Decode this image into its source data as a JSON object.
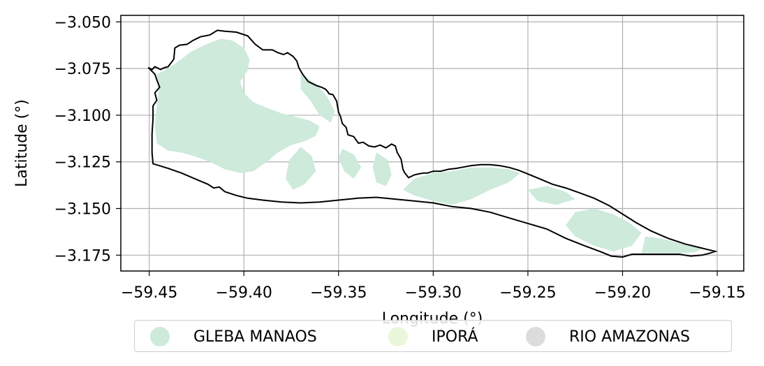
{
  "chart_data": {
    "type": "map",
    "xlabel": "Longitude (°)",
    "ylabel": "Latitude (°)",
    "xlim": [
      -59.465,
      -59.136
    ],
    "ylim": [
      -3.1835,
      -3.0465
    ],
    "xticks": [
      -59.45,
      -59.4,
      -59.35,
      -59.3,
      -59.25,
      -59.2,
      -59.15
    ],
    "yticks": [
      -3.05,
      -3.075,
      -3.1,
      -3.125,
      -3.15,
      -3.175
    ],
    "xtick_labels": [
      "−59.45",
      "−59.40",
      "−59.35",
      "−59.30",
      "−59.25",
      "−59.20",
      "−59.15"
    ],
    "ytick_labels": [
      "−3.050",
      "−3.075",
      "−3.100",
      "−3.125",
      "−3.150",
      "−3.175"
    ],
    "grid": true,
    "legend_position": "below",
    "boundary": [
      [
        -59.4505,
        -3.0745
      ],
      [
        -59.4485,
        -3.0755
      ],
      [
        -59.447,
        -3.074
      ],
      [
        -59.444,
        -3.0755
      ],
      [
        -59.442,
        -3.0745
      ],
      [
        -59.44,
        -3.074
      ],
      [
        -59.4385,
        -3.072
      ],
      [
        -59.437,
        -3.07
      ],
      [
        -59.4365,
        -3.064
      ],
      [
        -59.434,
        -3.0625
      ],
      [
        -59.43,
        -3.062
      ],
      [
        -59.427,
        -3.06
      ],
      [
        -59.423,
        -3.058
      ],
      [
        -59.418,
        -3.057
      ],
      [
        -59.414,
        -3.0545
      ],
      [
        -59.41,
        -3.055
      ],
      [
        -59.404,
        -3.0555
      ],
      [
        -59.398,
        -3.0575
      ],
      [
        -59.394,
        -3.062
      ],
      [
        -59.39,
        -3.065
      ],
      [
        -59.385,
        -3.065
      ],
      [
        -59.382,
        -3.0665
      ],
      [
        -59.379,
        -3.0675
      ],
      [
        -59.377,
        -3.0665
      ],
      [
        -59.374,
        -3.0685
      ],
      [
        -59.372,
        -3.071
      ],
      [
        -59.371,
        -3.0745
      ],
      [
        -59.369,
        -3.078
      ],
      [
        -59.366,
        -3.082
      ],
      [
        -59.362,
        -3.084
      ],
      [
        -59.359,
        -3.085
      ],
      [
        -59.357,
        -3.086
      ],
      [
        -59.356,
        -3.087
      ],
      [
        -59.355,
        -3.0885
      ],
      [
        -59.353,
        -3.089
      ],
      [
        -59.351,
        -3.0925
      ],
      [
        -59.35,
        -3.0985
      ],
      [
        -59.349,
        -3.1005
      ],
      [
        -59.348,
        -3.1045
      ],
      [
        -59.346,
        -3.1065
      ],
      [
        -59.345,
        -3.1105
      ],
      [
        -59.342,
        -3.1115
      ],
      [
        -59.3395,
        -3.115
      ],
      [
        -59.337,
        -3.1145
      ],
      [
        -59.334,
        -3.1165
      ],
      [
        -59.331,
        -3.117
      ],
      [
        -59.328,
        -3.116
      ],
      [
        -59.325,
        -3.1175
      ],
      [
        -59.322,
        -3.1155
      ],
      [
        -59.32,
        -3.1165
      ],
      [
        -59.319,
        -3.12
      ],
      [
        -59.317,
        -3.1235
      ],
      [
        -59.3165,
        -3.126
      ],
      [
        -59.316,
        -3.129
      ],
      [
        -59.315,
        -3.131
      ],
      [
        -59.313,
        -3.1335
      ],
      [
        -59.31,
        -3.132
      ],
      [
        -59.308,
        -3.1315
      ],
      [
        -59.305,
        -3.131
      ],
      [
        -59.303,
        -3.131
      ],
      [
        -59.3,
        -3.13
      ],
      [
        -59.296,
        -3.13
      ],
      [
        -59.292,
        -3.129
      ],
      [
        -59.288,
        -3.1285
      ],
      [
        -59.285,
        -3.128
      ],
      [
        -59.28,
        -3.127
      ],
      [
        -59.275,
        -3.1265
      ],
      [
        -59.27,
        -3.1265
      ],
      [
        -59.265,
        -3.127
      ],
      [
        -59.26,
        -3.128
      ],
      [
        -59.255,
        -3.1295
      ],
      [
        -59.25,
        -3.1315
      ],
      [
        -59.244,
        -3.134
      ],
      [
        -59.237,
        -3.137
      ],
      [
        -59.23,
        -3.139
      ],
      [
        -59.223,
        -3.1415
      ],
      [
        -59.215,
        -3.1445
      ],
      [
        -59.207,
        -3.1485
      ],
      [
        -59.2,
        -3.153
      ],
      [
        -59.193,
        -3.1575
      ],
      [
        -59.185,
        -3.162
      ],
      [
        -59.176,
        -3.166
      ],
      [
        -59.167,
        -3.169
      ],
      [
        -59.159,
        -3.171
      ],
      [
        -59.155,
        -3.172
      ],
      [
        -59.151,
        -3.173
      ],
      [
        -59.154,
        -3.174
      ],
      [
        -59.158,
        -3.175
      ],
      [
        -59.164,
        -3.1755
      ],
      [
        -59.17,
        -3.1745
      ],
      [
        -59.178,
        -3.1745
      ],
      [
        -59.186,
        -3.1745
      ],
      [
        -59.195,
        -3.1745
      ],
      [
        -59.2,
        -3.176
      ],
      [
        -59.206,
        -3.1755
      ],
      [
        -59.212,
        -3.173
      ],
      [
        -59.22,
        -3.17
      ],
      [
        -59.23,
        -3.166
      ],
      [
        -59.24,
        -3.161
      ],
      [
        -59.25,
        -3.158
      ],
      [
        -59.26,
        -3.155
      ],
      [
        -59.27,
        -3.152
      ],
      [
        -59.28,
        -3.15
      ],
      [
        -59.29,
        -3.149
      ],
      [
        -59.3,
        -3.147
      ],
      [
        -59.31,
        -3.146
      ],
      [
        -59.32,
        -3.145
      ],
      [
        -59.33,
        -3.144
      ],
      [
        -59.34,
        -3.1445
      ],
      [
        -59.35,
        -3.1455
      ],
      [
        -59.36,
        -3.1465
      ],
      [
        -59.37,
        -3.147
      ],
      [
        -59.38,
        -3.1465
      ],
      [
        -59.39,
        -3.1455
      ],
      [
        -59.398,
        -3.1445
      ],
      [
        -59.404,
        -3.143
      ],
      [
        -59.41,
        -3.141
      ],
      [
        -59.413,
        -3.1385
      ],
      [
        -59.416,
        -3.139
      ],
      [
        -59.419,
        -3.137
      ],
      [
        -59.426,
        -3.134
      ],
      [
        -59.433,
        -3.131
      ],
      [
        -59.44,
        -3.1285
      ],
      [
        -59.448,
        -3.126
      ],
      [
        -59.4485,
        -3.12
      ],
      [
        -59.4485,
        -3.11
      ],
      [
        -59.448,
        -3.102
      ],
      [
        -59.448,
        -3.095
      ],
      [
        -59.446,
        -3.092
      ],
      [
        -59.447,
        -3.088
      ],
      [
        -59.4445,
        -3.085
      ],
      [
        -59.446,
        -3.081
      ],
      [
        -59.447,
        -3.078
      ],
      [
        -59.4505,
        -3.0745
      ]
    ],
    "series": [
      {
        "name": "GLEBA MANAOS",
        "color": "#cdeadb",
        "regions": [
          [
            [
              -59.446,
              -3.078
            ],
            [
              -59.44,
              -3.075
            ],
            [
              -59.433,
              -3.07
            ],
            [
              -59.428,
              -3.066
            ],
            [
              -59.42,
              -3.062
            ],
            [
              -59.412,
              -3.059
            ],
            [
              -59.406,
              -3.06
            ],
            [
              -59.4,
              -3.064
            ],
            [
              -59.397,
              -3.07
            ],
            [
              -59.398,
              -3.076
            ],
            [
              -59.402,
              -3.082
            ],
            [
              -59.4,
              -3.088
            ],
            [
              -59.395,
              -3.093
            ],
            [
              -59.388,
              -3.096
            ],
            [
              -59.38,
              -3.099
            ],
            [
              -59.372,
              -3.101
            ],
            [
              -59.365,
              -3.103
            ],
            [
              -59.36,
              -3.106
            ],
            [
              -59.362,
              -3.111
            ],
            [
              -59.368,
              -3.114
            ],
            [
              -59.375,
              -3.116
            ],
            [
              -59.382,
              -3.12
            ],
            [
              -59.388,
              -3.125
            ],
            [
              -59.395,
              -3.13
            ],
            [
              -59.402,
              -3.131
            ],
            [
              -59.41,
              -3.129
            ],
            [
              -59.418,
              -3.125
            ],
            [
              -59.426,
              -3.122
            ],
            [
              -59.433,
              -3.12
            ],
            [
              -59.44,
              -3.119
            ],
            [
              -59.446,
              -3.115
            ],
            [
              -59.447,
              -3.105
            ],
            [
              -59.446,
              -3.095
            ],
            [
              -59.445,
              -3.087
            ]
          ],
          [
            [
              -59.37,
              -3.078
            ],
            [
              -59.362,
              -3.083
            ],
            [
              -59.356,
              -3.09
            ],
            [
              -59.352,
              -3.098
            ],
            [
              -59.354,
              -3.104
            ],
            [
              -59.36,
              -3.1
            ],
            [
              -59.365,
              -3.092
            ],
            [
              -59.37,
              -3.086
            ]
          ],
          [
            [
              -59.37,
              -3.117
            ],
            [
              -59.364,
              -3.122
            ],
            [
              -59.362,
              -3.13
            ],
            [
              -59.368,
              -3.137
            ],
            [
              -59.374,
              -3.14
            ],
            [
              -59.378,
              -3.134
            ],
            [
              -59.376,
              -3.124
            ]
          ],
          [
            [
              -59.348,
              -3.118
            ],
            [
              -59.342,
              -3.121
            ],
            [
              -59.338,
              -3.128
            ],
            [
              -59.342,
              -3.134
            ],
            [
              -59.347,
              -3.13
            ],
            [
              -59.35,
              -3.123
            ]
          ],
          [
            [
              -59.33,
              -3.12
            ],
            [
              -59.324,
              -3.124
            ],
            [
              -59.322,
              -3.132
            ],
            [
              -59.325,
              -3.138
            ],
            [
              -59.33,
              -3.136
            ],
            [
              -59.332,
              -3.128
            ]
          ],
          [
            [
              -59.31,
              -3.134
            ],
            [
              -59.3,
              -3.131
            ],
            [
              -59.29,
              -3.13
            ],
            [
              -59.28,
              -3.128
            ],
            [
              -59.27,
              -3.128
            ],
            [
              -59.26,
              -3.129
            ],
            [
              -59.254,
              -3.131
            ],
            [
              -59.26,
              -3.136
            ],
            [
              -59.27,
              -3.14
            ],
            [
              -59.28,
              -3.145
            ],
            [
              -59.29,
              -3.148
            ],
            [
              -59.3,
              -3.146
            ],
            [
              -59.31,
              -3.143
            ],
            [
              -59.316,
              -3.14
            ]
          ],
          [
            [
              -59.25,
              -3.14
            ],
            [
              -59.24,
              -3.138
            ],
            [
              -59.23,
              -3.141
            ],
            [
              -59.225,
              -3.145
            ],
            [
              -59.235,
              -3.148
            ],
            [
              -59.245,
              -3.146
            ]
          ],
          [
            [
              -59.225,
              -3.152
            ],
            [
              -59.215,
              -3.15
            ],
            [
              -59.205,
              -3.153
            ],
            [
              -59.196,
              -3.158
            ],
            [
              -59.19,
              -3.163
            ],
            [
              -59.195,
              -3.17
            ],
            [
              -59.205,
              -3.173
            ],
            [
              -59.215,
              -3.17
            ],
            [
              -59.225,
              -3.165
            ],
            [
              -59.23,
              -3.159
            ]
          ],
          [
            [
              -59.188,
              -3.165
            ],
            [
              -59.18,
              -3.166
            ],
            [
              -59.172,
              -3.168
            ],
            [
              -59.165,
              -3.17
            ],
            [
              -59.158,
              -3.1715
            ],
            [
              -59.162,
              -3.1735
            ],
            [
              -59.17,
              -3.174
            ],
            [
              -59.18,
              -3.174
            ],
            [
              -59.19,
              -3.174
            ]
          ]
        ]
      },
      {
        "name": "IPORÁ",
        "color": "#eaf7da",
        "regions": []
      },
      {
        "name": "RIO AMAZONAS",
        "color": "#dcdcdc",
        "regions": []
      }
    ]
  }
}
